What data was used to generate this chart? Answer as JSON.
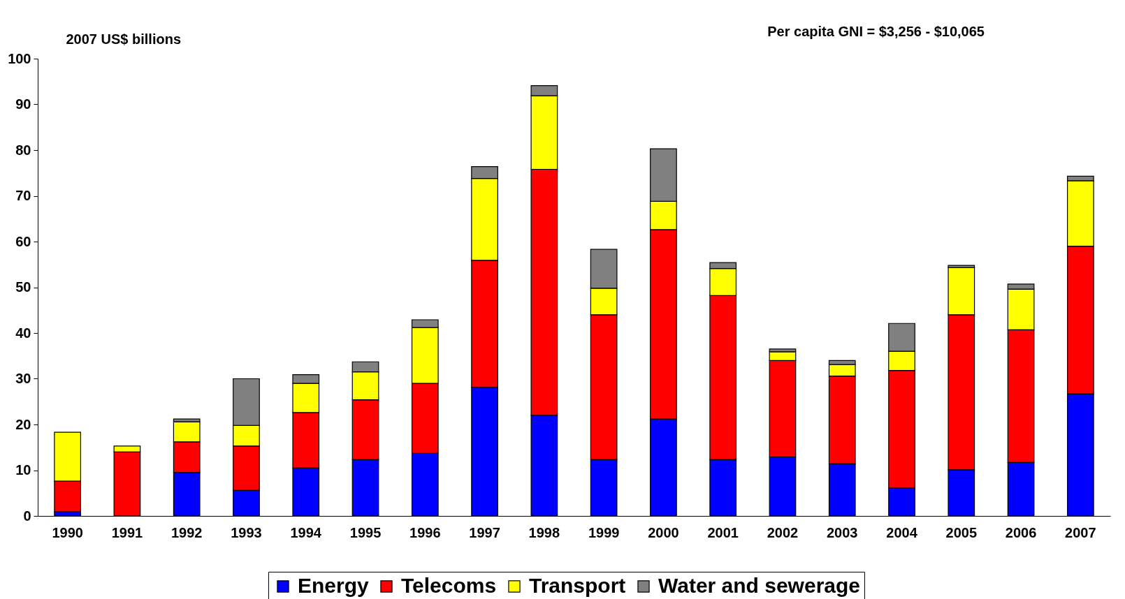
{
  "chart_data": {
    "type": "bar",
    "title": "Per capita GNI = $3,256 - $10,065",
    "ylabel": "2007 US$ billions",
    "categories": [
      "1990",
      "1991",
      "1992",
      "1993",
      "1994",
      "1995",
      "1996",
      "1997",
      "1998",
      "1999",
      "2000",
      "2001",
      "2002",
      "2003",
      "2004",
      "2005",
      "2006",
      "2007"
    ],
    "stacked": true,
    "ylim": [
      0,
      100
    ],
    "yticks": [
      0,
      10,
      20,
      30,
      40,
      50,
      60,
      70,
      80,
      90,
      100
    ],
    "grid": false,
    "legend": "bottom",
    "series": [
      {
        "name": "Energy",
        "color": "#0000ff",
        "values": [
          0.9,
          0,
          9.5,
          5.6,
          10.5,
          12.3,
          13.7,
          28.1,
          22.0,
          12.3,
          21.2,
          12.3,
          12.9,
          11.4,
          6.1,
          10.1,
          11.7,
          26.7
        ]
      },
      {
        "name": "Telecoms",
        "color": "#ff0000",
        "values": [
          6.7,
          14.0,
          6.7,
          9.7,
          12.1,
          13.1,
          15.3,
          27.8,
          53.8,
          31.7,
          41.4,
          35.9,
          21.1,
          19.2,
          25.7,
          33.9,
          29.0,
          32.3
        ]
      },
      {
        "name": "Transport",
        "color": "#ffff00",
        "values": [
          10.7,
          1.3,
          4.4,
          4.5,
          6.4,
          6.1,
          12.2,
          17.9,
          16.1,
          5.8,
          6.2,
          5.9,
          1.9,
          2.5,
          4.2,
          10.3,
          8.9,
          14.3
        ]
      },
      {
        "name": "Water and sewerage",
        "color": "#808080",
        "values": [
          0,
          0,
          0.6,
          10.2,
          1.9,
          2.2,
          1.7,
          2.6,
          2.2,
          8.5,
          11.5,
          1.3,
          0.6,
          0.9,
          6.1,
          0.5,
          1.1,
          1.0
        ]
      }
    ]
  }
}
